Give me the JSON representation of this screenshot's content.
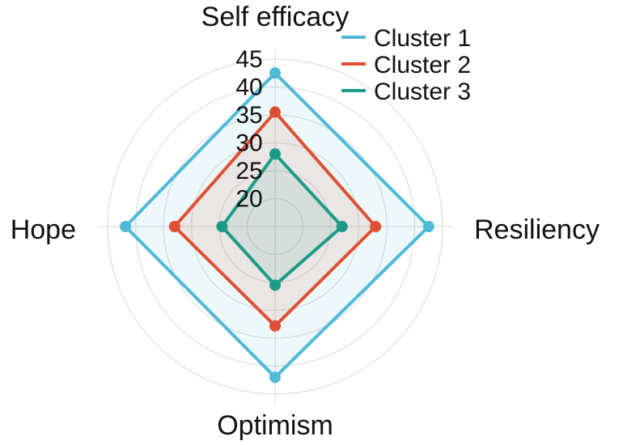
{
  "chart_data": {
    "type": "radar",
    "axes": [
      "Self efficacy",
      "Resiliency",
      "Optimism",
      "Hope"
    ],
    "radial_ticks": [
      20,
      25,
      30,
      35,
      40,
      45
    ],
    "radial_tick_labels": [
      "20",
      "25",
      "30",
      "35",
      "40",
      "45"
    ],
    "rlim": [
      15,
      45
    ],
    "grid": true,
    "legend_position": "top-right",
    "series": [
      {
        "name": "Cluster 1",
        "color": "#4fb9d6",
        "values": [
          42.5,
          42.5,
          42.0,
          41.8
        ]
      },
      {
        "name": "Cluster 2",
        "color": "#dd5034",
        "values": [
          35.5,
          33.0,
          32.8,
          33.0
        ]
      },
      {
        "name": "Cluster 3",
        "color": "#1b9a87",
        "values": [
          28.0,
          27.0,
          25.5,
          24.5
        ]
      }
    ]
  }
}
